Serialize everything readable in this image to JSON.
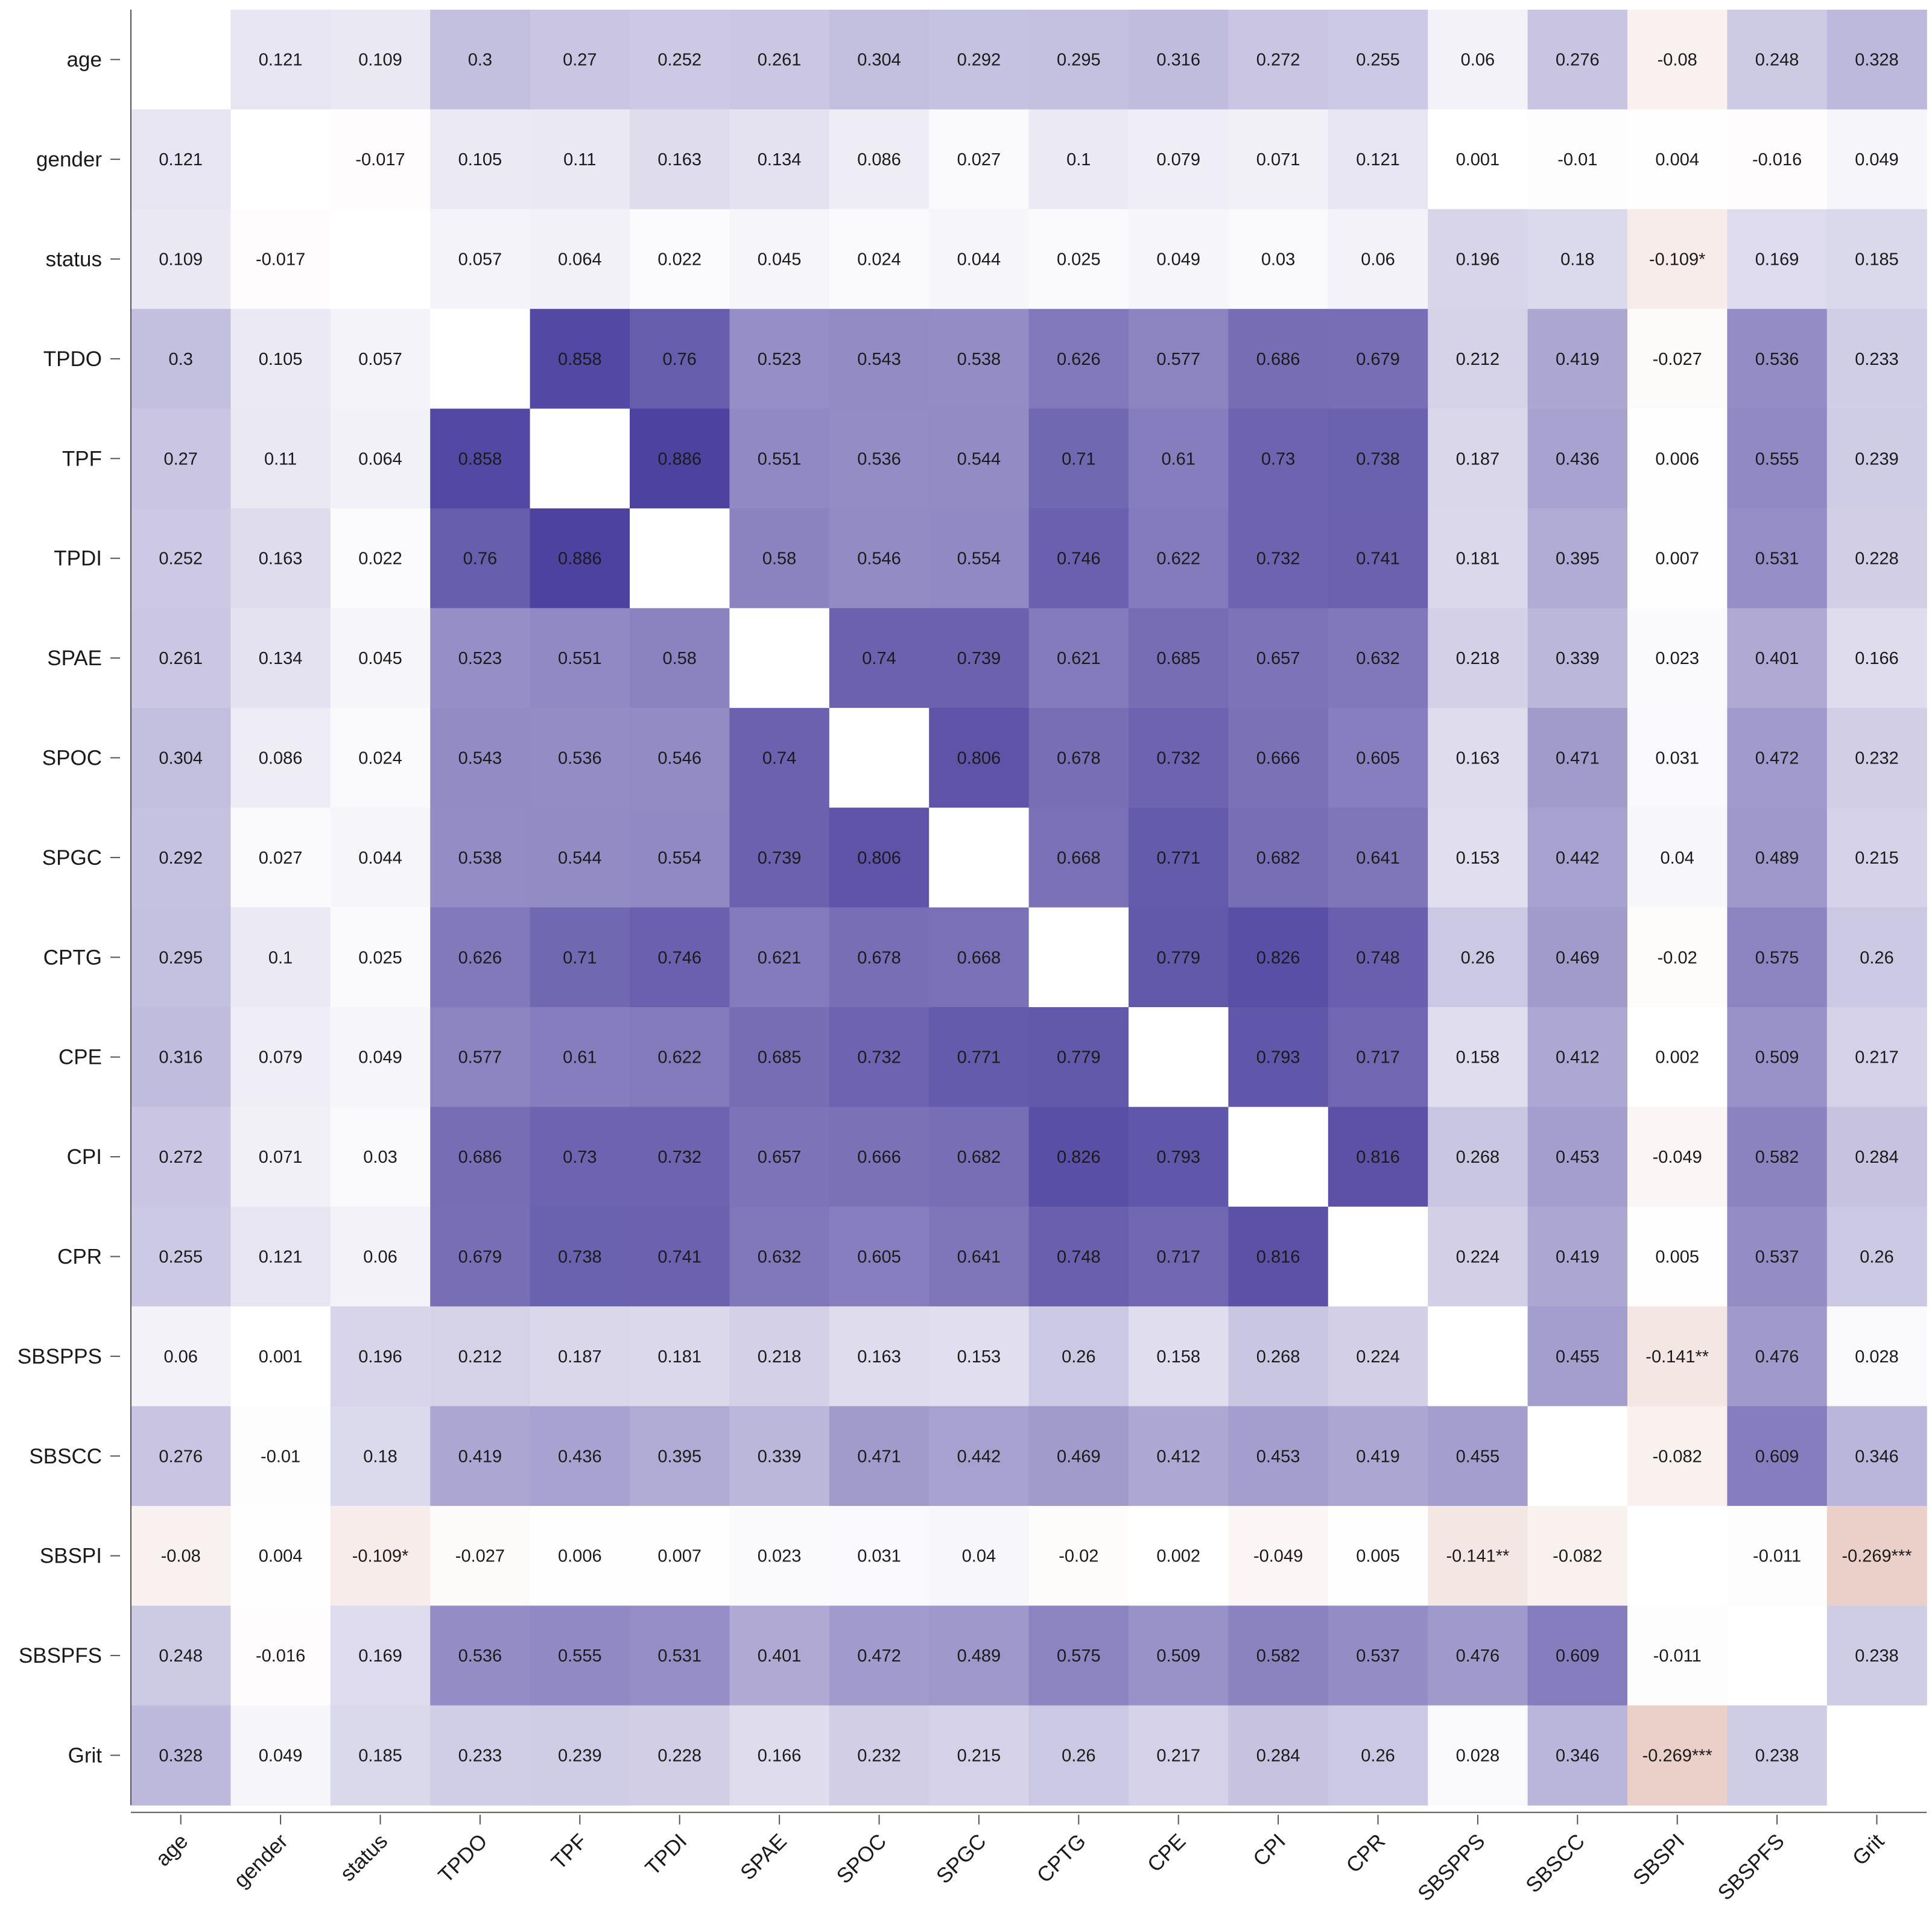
{
  "chart_data": {
    "type": "heatmap",
    "title": "",
    "xlabel": "",
    "ylabel": "",
    "variables": [
      "age",
      "gender",
      "status",
      "TPDO",
      "TPF",
      "TPDI",
      "SPAE",
      "SPOC",
      "SPGC",
      "CPTG",
      "CPE",
      "CPI",
      "CPR",
      "SBSPPS",
      "SBSCC",
      "SBSPI",
      "SBSPFS",
      "Grit"
    ],
    "diagonal": "blank",
    "color_scale": {
      "negative": "#d9a89a",
      "zero": "#ffffff",
      "positive": "#4b3f9e",
      "range": [
        -1,
        1
      ]
    },
    "matrix": [
      [
        null,
        0.121,
        0.109,
        0.3,
        0.27,
        0.252,
        0.261,
        0.304,
        0.292,
        0.295,
        0.316,
        0.272,
        0.255,
        0.06,
        0.276,
        -0.08,
        0.248,
        0.328
      ],
      [
        0.121,
        null,
        -0.017,
        0.105,
        0.11,
        0.163,
        0.134,
        0.086,
        0.027,
        0.1,
        0.079,
        0.071,
        0.121,
        0.001,
        -0.01,
        0.004,
        -0.016,
        0.049
      ],
      [
        0.109,
        -0.017,
        null,
        0.057,
        0.064,
        0.022,
        0.045,
        0.024,
        0.044,
        0.025,
        0.049,
        0.03,
        0.06,
        0.196,
        0.18,
        -0.109,
        0.169,
        0.185
      ],
      [
        0.3,
        0.105,
        0.057,
        null,
        0.858,
        0.76,
        0.523,
        0.543,
        0.538,
        0.626,
        0.577,
        0.686,
        0.679,
        0.212,
        0.419,
        -0.027,
        0.536,
        0.233
      ],
      [
        0.27,
        0.11,
        0.064,
        0.858,
        null,
        0.886,
        0.551,
        0.536,
        0.544,
        0.71,
        0.61,
        0.73,
        0.738,
        0.187,
        0.436,
        0.006,
        0.555,
        0.239
      ],
      [
        0.252,
        0.163,
        0.022,
        0.76,
        0.886,
        null,
        0.58,
        0.546,
        0.554,
        0.746,
        0.622,
        0.732,
        0.741,
        0.181,
        0.395,
        0.007,
        0.531,
        0.228
      ],
      [
        0.261,
        0.134,
        0.045,
        0.523,
        0.551,
        0.58,
        null,
        0.74,
        0.739,
        0.621,
        0.685,
        0.657,
        0.632,
        0.218,
        0.339,
        0.023,
        0.401,
        0.166
      ],
      [
        0.304,
        0.086,
        0.024,
        0.543,
        0.536,
        0.546,
        0.74,
        null,
        0.806,
        0.678,
        0.732,
        0.666,
        0.605,
        0.163,
        0.471,
        0.031,
        0.472,
        0.232
      ],
      [
        0.292,
        0.027,
        0.044,
        0.538,
        0.544,
        0.554,
        0.739,
        0.806,
        null,
        0.668,
        0.771,
        0.682,
        0.641,
        0.153,
        0.442,
        0.04,
        0.489,
        0.215
      ],
      [
        0.295,
        0.1,
        0.025,
        0.626,
        0.71,
        0.746,
        0.621,
        0.678,
        0.668,
        null,
        0.779,
        0.826,
        0.748,
        0.26,
        0.469,
        -0.02,
        0.575,
        0.26
      ],
      [
        0.316,
        0.079,
        0.049,
        0.577,
        0.61,
        0.622,
        0.685,
        0.732,
        0.771,
        0.779,
        null,
        0.793,
        0.717,
        0.158,
        0.412,
        0.002,
        0.509,
        0.217
      ],
      [
        0.272,
        0.071,
        0.03,
        0.686,
        0.73,
        0.732,
        0.657,
        0.666,
        0.682,
        0.826,
        0.793,
        null,
        0.816,
        0.268,
        0.453,
        -0.049,
        0.582,
        0.284
      ],
      [
        0.255,
        0.121,
        0.06,
        0.679,
        0.738,
        0.741,
        0.632,
        0.605,
        0.641,
        0.748,
        0.717,
        0.816,
        null,
        0.224,
        0.419,
        0.005,
        0.537,
        0.26
      ],
      [
        0.06,
        0.001,
        0.196,
        0.212,
        0.187,
        0.181,
        0.218,
        0.163,
        0.153,
        0.26,
        0.158,
        0.268,
        0.224,
        null,
        0.455,
        -0.141,
        0.476,
        0.028
      ],
      [
        0.276,
        -0.01,
        0.18,
        0.419,
        0.436,
        0.395,
        0.339,
        0.471,
        0.442,
        0.469,
        0.412,
        0.453,
        0.419,
        0.455,
        null,
        -0.082,
        0.609,
        0.346
      ],
      [
        -0.08,
        0.004,
        -0.109,
        -0.027,
        0.006,
        0.007,
        0.023,
        0.031,
        0.04,
        -0.02,
        0.002,
        -0.049,
        0.005,
        -0.141,
        -0.082,
        null,
        -0.011,
        -0.269
      ],
      [
        0.248,
        -0.016,
        0.169,
        0.536,
        0.555,
        0.531,
        0.401,
        0.472,
        0.489,
        0.575,
        0.509,
        0.582,
        0.537,
        0.476,
        0.609,
        -0.011,
        null,
        0.238
      ],
      [
        0.328,
        0.049,
        0.185,
        0.233,
        0.239,
        0.228,
        0.166,
        0.232,
        0.215,
        0.26,
        0.217,
        0.284,
        0.26,
        0.028,
        0.346,
        -0.269,
        0.238,
        null
      ]
    ],
    "labels": [
      [
        "",
        "0.121",
        "0.109",
        "0.3",
        "0.27",
        "0.252",
        "0.261",
        "0.304",
        "0.292",
        "0.295",
        "0.316",
        "0.272",
        "0.255",
        "0.06",
        "0.276",
        "-0.08",
        "0.248",
        "0.328"
      ],
      [
        "0.121",
        "",
        "-0.017",
        "0.105",
        "0.11",
        "0.163",
        "0.134",
        "0.086",
        "0.027",
        "0.1",
        "0.079",
        "0.071",
        "0.121",
        "0.001",
        "-0.01",
        "0.004",
        "-0.016",
        "0.049"
      ],
      [
        "0.109",
        "-0.017",
        "",
        "0.057",
        "0.064",
        "0.022",
        "0.045",
        "0.024",
        "0.044",
        "0.025",
        "0.049",
        "0.03",
        "0.06",
        "0.196",
        "0.18",
        "-0.109*",
        "0.169",
        "0.185"
      ],
      [
        "0.3",
        "0.105",
        "0.057",
        "",
        "0.858",
        "0.76",
        "0.523",
        "0.543",
        "0.538",
        "0.626",
        "0.577",
        "0.686",
        "0.679",
        "0.212",
        "0.419",
        "-0.027",
        "0.536",
        "0.233"
      ],
      [
        "0.27",
        "0.11",
        "0.064",
        "0.858",
        "",
        "0.886",
        "0.551",
        "0.536",
        "0.544",
        "0.71",
        "0.61",
        "0.73",
        "0.738",
        "0.187",
        "0.436",
        "0.006",
        "0.555",
        "0.239"
      ],
      [
        "0.252",
        "0.163",
        "0.022",
        "0.76",
        "0.886",
        "",
        "0.58",
        "0.546",
        "0.554",
        "0.746",
        "0.622",
        "0.732",
        "0.741",
        "0.181",
        "0.395",
        "0.007",
        "0.531",
        "0.228"
      ],
      [
        "0.261",
        "0.134",
        "0.045",
        "0.523",
        "0.551",
        "0.58",
        "",
        "0.74",
        "0.739",
        "0.621",
        "0.685",
        "0.657",
        "0.632",
        "0.218",
        "0.339",
        "0.023",
        "0.401",
        "0.166"
      ],
      [
        "0.304",
        "0.086",
        "0.024",
        "0.543",
        "0.536",
        "0.546",
        "0.74",
        "",
        "0.806",
        "0.678",
        "0.732",
        "0.666",
        "0.605",
        "0.163",
        "0.471",
        "0.031",
        "0.472",
        "0.232"
      ],
      [
        "0.292",
        "0.027",
        "0.044",
        "0.538",
        "0.544",
        "0.554",
        "0.739",
        "0.806",
        "",
        "0.668",
        "0.771",
        "0.682",
        "0.641",
        "0.153",
        "0.442",
        "0.04",
        "0.489",
        "0.215"
      ],
      [
        "0.295",
        "0.1",
        "0.025",
        "0.626",
        "0.71",
        "0.746",
        "0.621",
        "0.678",
        "0.668",
        "",
        "0.779",
        "0.826",
        "0.748",
        "0.26",
        "0.469",
        "-0.02",
        "0.575",
        "0.26"
      ],
      [
        "0.316",
        "0.079",
        "0.049",
        "0.577",
        "0.61",
        "0.622",
        "0.685",
        "0.732",
        "0.771",
        "0.779",
        "",
        "0.793",
        "0.717",
        "0.158",
        "0.412",
        "0.002",
        "0.509",
        "0.217"
      ],
      [
        "0.272",
        "0.071",
        "0.03",
        "0.686",
        "0.73",
        "0.732",
        "0.657",
        "0.666",
        "0.682",
        "0.826",
        "0.793",
        "",
        "0.816",
        "0.268",
        "0.453",
        "-0.049",
        "0.582",
        "0.284"
      ],
      [
        "0.255",
        "0.121",
        "0.06",
        "0.679",
        "0.738",
        "0.741",
        "0.632",
        "0.605",
        "0.641",
        "0.748",
        "0.717",
        "0.816",
        "",
        "0.224",
        "0.419",
        "0.005",
        "0.537",
        "0.26"
      ],
      [
        "0.06",
        "0.001",
        "0.196",
        "0.212",
        "0.187",
        "0.181",
        "0.218",
        "0.163",
        "0.153",
        "0.26",
        "0.158",
        "0.268",
        "0.224",
        "",
        "0.455",
        "-0.141**",
        "0.476",
        "0.028"
      ],
      [
        "0.276",
        "-0.01",
        "0.18",
        "0.419",
        "0.436",
        "0.395",
        "0.339",
        "0.471",
        "0.442",
        "0.469",
        "0.412",
        "0.453",
        "0.419",
        "0.455",
        "",
        "-0.082",
        "0.609",
        "0.346"
      ],
      [
        "-0.08",
        "0.004",
        "-0.109*",
        "-0.027",
        "0.006",
        "0.007",
        "0.023",
        "0.031",
        "0.04",
        "-0.02",
        "0.002",
        "-0.049",
        "0.005",
        "-0.141**",
        "-0.082",
        "",
        "-0.011",
        "-0.269***"
      ],
      [
        "0.248",
        "-0.016",
        "0.169",
        "0.536",
        "0.555",
        "0.531",
        "0.401",
        "0.472",
        "0.489",
        "0.575",
        "0.509",
        "0.582",
        "0.537",
        "0.476",
        "0.609",
        "-0.011",
        "",
        "0.238"
      ],
      [
        "0.328",
        "0.049",
        "0.185",
        "0.233",
        "0.239",
        "0.228",
        "0.166",
        "0.232",
        "0.215",
        "0.26",
        "0.217",
        "0.284",
        "0.26",
        "0.028",
        "0.346",
        "-0.269***",
        "0.238",
        ""
      ]
    ]
  }
}
